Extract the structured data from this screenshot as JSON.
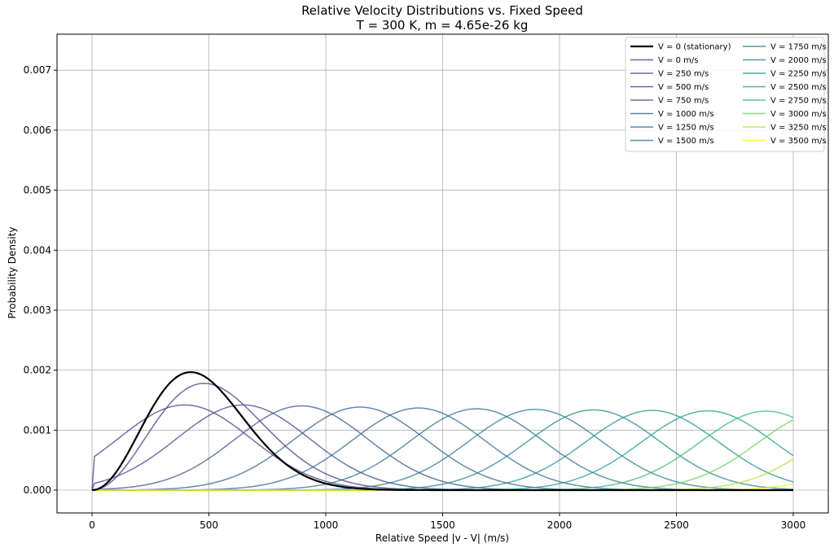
{
  "chart_data": {
    "type": "line",
    "title": "Relative Velocity Distributions vs. Fixed Speed",
    "subtitle": "T = 300 K, m = 4.65e-26 kg",
    "xlabel": "Relative Speed |v - V| (m/s)",
    "ylabel": "Probability Density",
    "xlim": [
      -150,
      3150
    ],
    "ylim": [
      -0.00038,
      0.0076
    ],
    "xticks": [
      0,
      500,
      1000,
      1500,
      2000,
      2500,
      3000
    ],
    "xtick_labels": [
      "0",
      "500",
      "1000",
      "1500",
      "2000",
      "2500",
      "3000"
    ],
    "yticks": [
      0.0,
      0.001,
      0.002,
      0.003,
      0.004,
      0.005,
      0.006,
      0.007
    ],
    "ytick_labels": [
      "0.000",
      "0.001",
      "0.002",
      "0.003",
      "0.004",
      "0.005",
      "0.006",
      "0.007"
    ],
    "grid": true,
    "legend_position": "top-right",
    "legend_columns": 2,
    "x_range": [
      0,
      3000
    ],
    "mass_kg": 4.65e-26,
    "temperature_K": 300,
    "series": [
      {
        "name": "V = 0 (stationary)",
        "V": 0,
        "color": "#000000",
        "width": 2.2
      },
      {
        "name": "V = 0 m/s",
        "V": 0,
        "color": "#443a83",
        "width": 1.5
      },
      {
        "name": "V = 250 m/s",
        "V": 250,
        "color": "#424086",
        "width": 1.5
      },
      {
        "name": "V = 500 m/s",
        "V": 500,
        "color": "#3e4989",
        "width": 1.5
      },
      {
        "name": "V = 750 m/s",
        "V": 750,
        "color": "#3a548c",
        "width": 1.5
      },
      {
        "name": "V = 1000 m/s",
        "V": 1000,
        "color": "#355f8d",
        "width": 1.5
      },
      {
        "name": "V = 1250 m/s",
        "V": 1250,
        "color": "#31688e",
        "width": 1.5
      },
      {
        "name": "V = 1500 m/s",
        "V": 1500,
        "color": "#2c728e",
        "width": 1.5
      },
      {
        "name": "V = 1750 m/s",
        "V": 1750,
        "color": "#287c8e",
        "width": 1.5
      },
      {
        "name": "V = 2000 m/s",
        "V": 2000,
        "color": "#24868e",
        "width": 1.5
      },
      {
        "name": "V = 2250 m/s",
        "V": 2250,
        "color": "#21918c",
        "width": 1.5
      },
      {
        "name": "V = 2500 m/s",
        "V": 2500,
        "color": "#1fa088",
        "width": 1.5
      },
      {
        "name": "V = 2750 m/s",
        "V": 2750,
        "color": "#35b779",
        "width": 1.5
      },
      {
        "name": "V = 3000 m/s",
        "V": 3000,
        "color": "#6ece58",
        "width": 1.5
      },
      {
        "name": "V = 3250 m/s",
        "V": 3250,
        "color": "#b5de2b",
        "width": 1.5
      },
      {
        "name": "V = 3500 m/s",
        "V": 3500,
        "color": "#fde725",
        "width": 1.5
      }
    ]
  }
}
